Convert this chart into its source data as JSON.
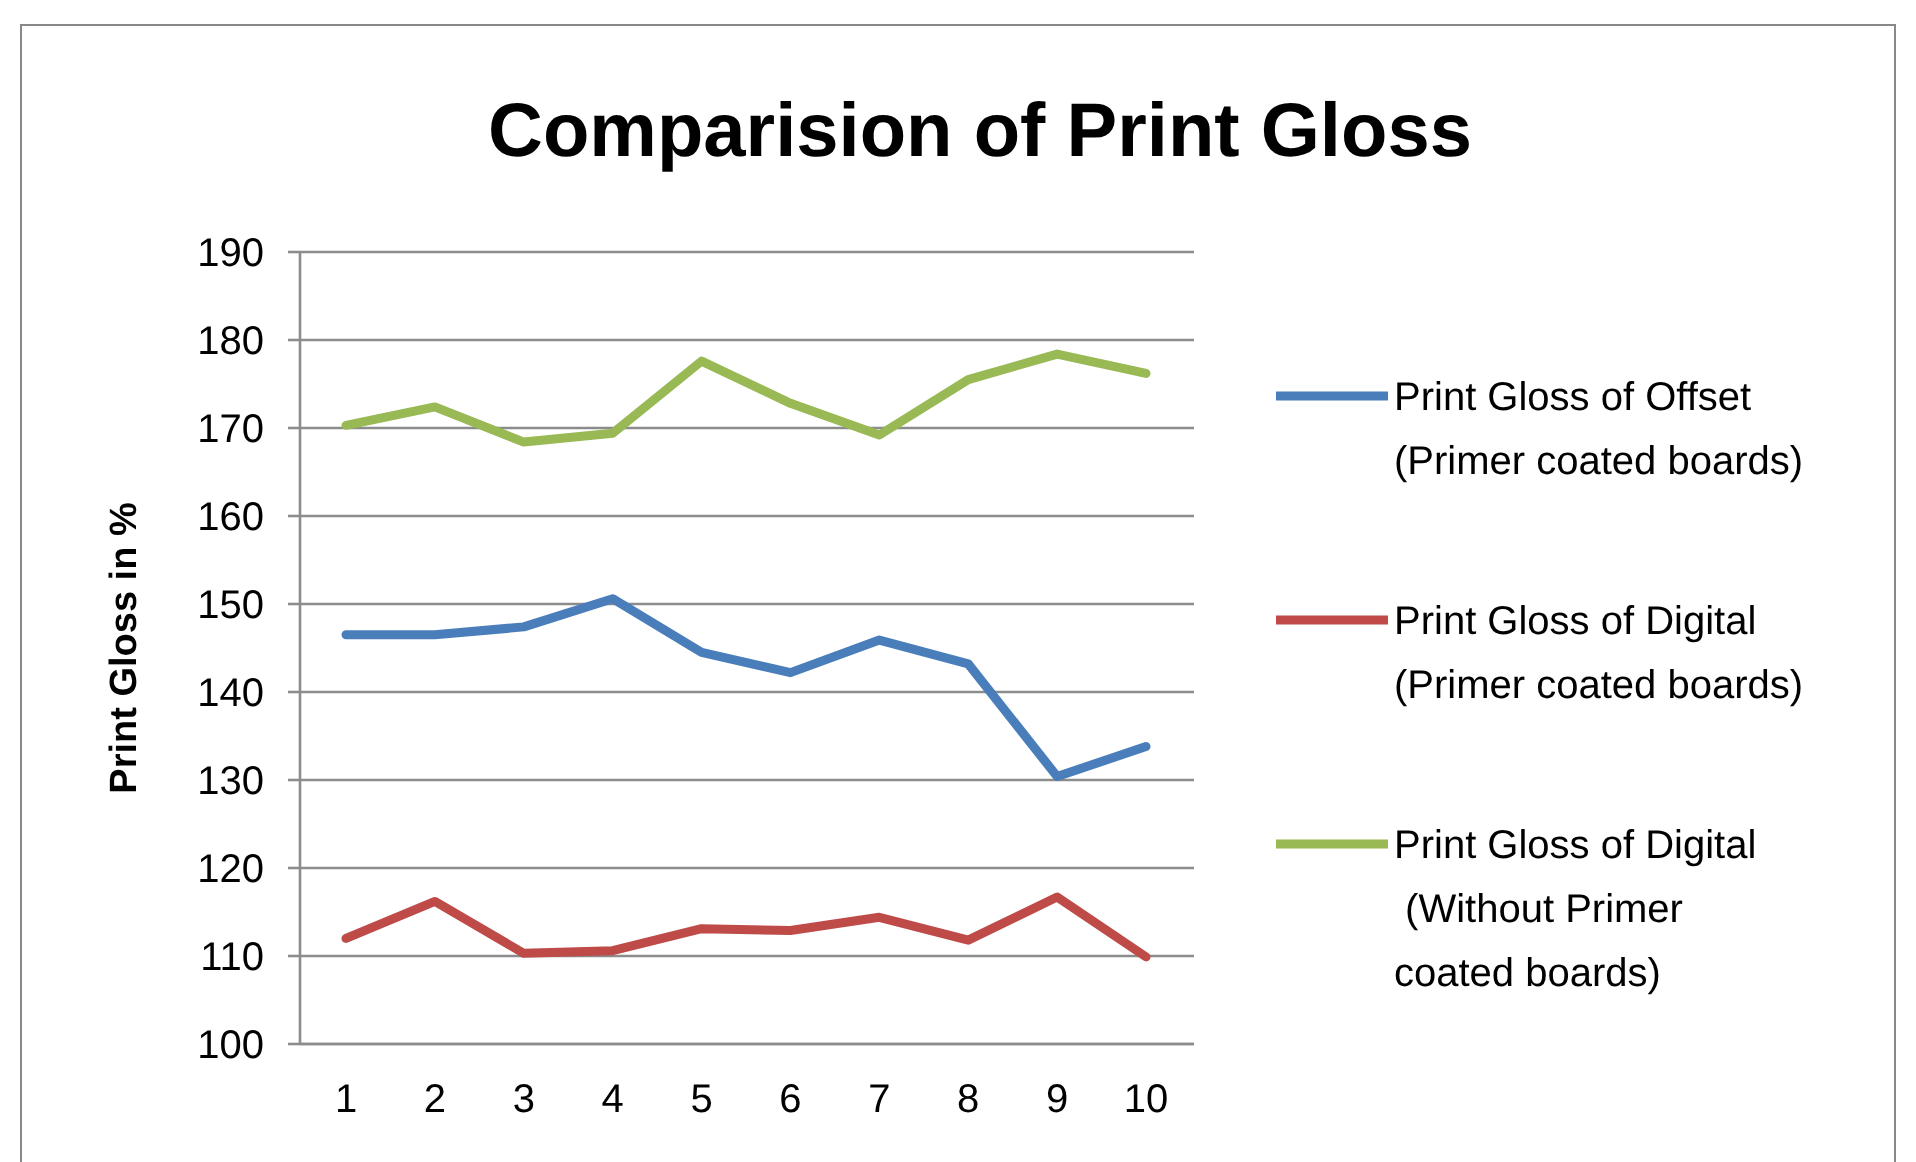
{
  "chart_data": {
    "type": "line",
    "title": "Comparision of Print Gloss",
    "ylabel": "Print Gloss in %",
    "categories": [
      "1",
      "2",
      "3",
      "4",
      "5",
      "6",
      "7",
      "8",
      "9",
      "10"
    ],
    "ylim": [
      100,
      190
    ],
    "yticks": [
      100,
      110,
      120,
      130,
      140,
      150,
      160,
      170,
      180,
      190
    ],
    "grid": "y",
    "legend": "right",
    "marker": "none",
    "line_style": "solid",
    "series": [
      {
        "name": "Print Gloss of Offset\n(Primer coated boards)",
        "color": "#4a7ebb",
        "values": [
          146.5,
          146.5,
          147.4,
          150.6,
          144.5,
          142.2,
          145.9,
          143.2,
          130.4,
          133.8
        ]
      },
      {
        "name": "Print Gloss of Digital\n(Primer coated boards)",
        "color": "#be4b48",
        "values": [
          112.0,
          116.2,
          110.3,
          110.6,
          113.1,
          112.9,
          114.4,
          111.8,
          116.7,
          109.9
        ]
      },
      {
        "name": "Print Gloss of Digital\n (Without Primer\ncoated boards)",
        "color": "#98b954",
        "values": [
          170.3,
          172.4,
          168.4,
          169.4,
          177.6,
          172.8,
          169.2,
          175.5,
          178.4,
          176.2
        ]
      }
    ]
  }
}
